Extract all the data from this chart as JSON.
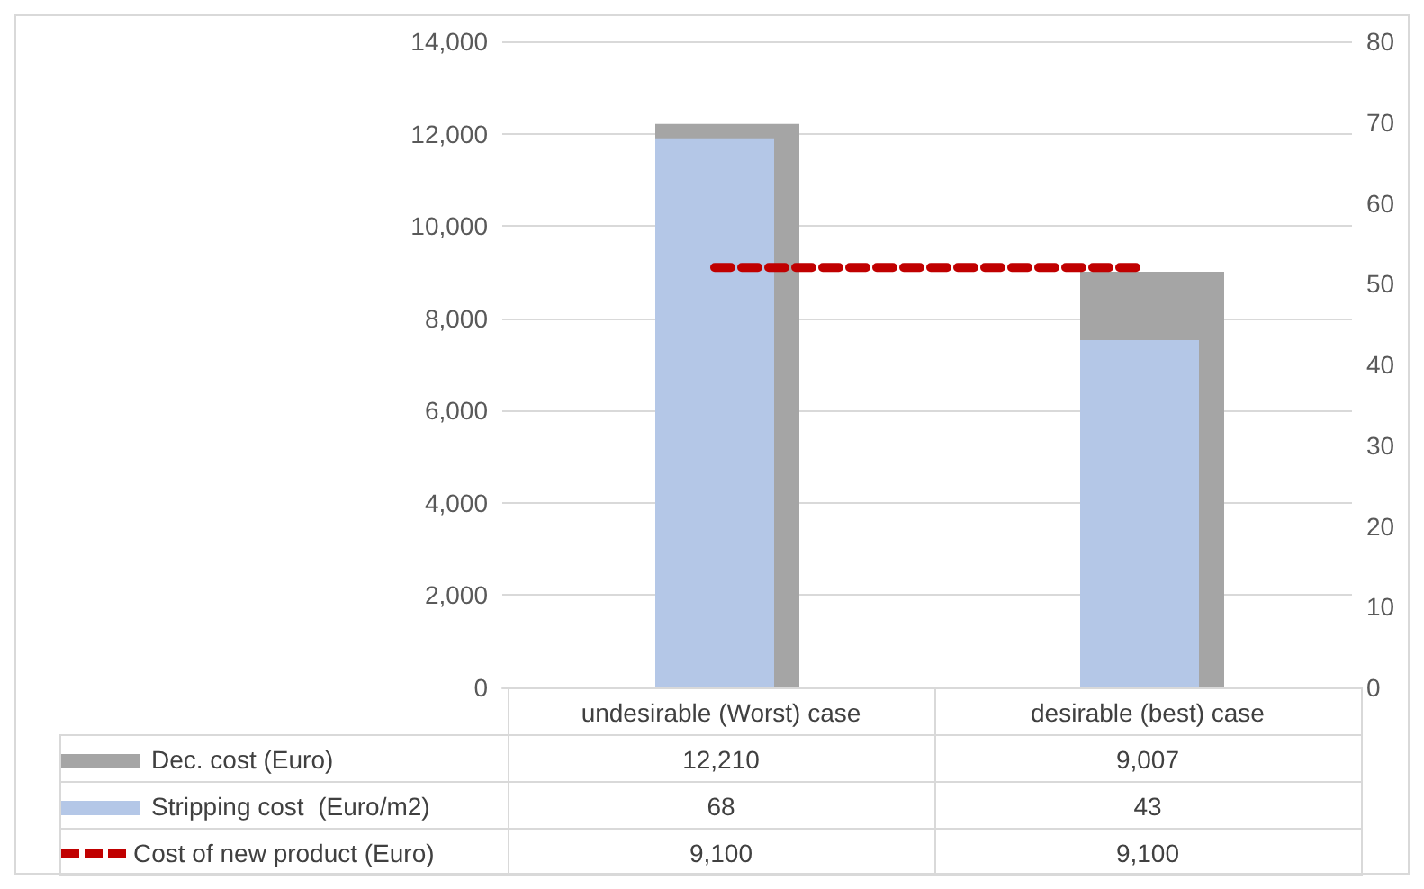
{
  "chart_data": {
    "type": "bar",
    "categories": [
      "undesirable (Worst) case",
      "desirable (best) case"
    ],
    "series": [
      {
        "name": "Dec. cost (Euro)",
        "color": "#a5a5a5",
        "values": [
          12210,
          9007
        ],
        "value_labels": [
          "12,210",
          "9,007"
        ]
      },
      {
        "name": "Stripping cost  (Euro/m2)",
        "color": "#b4c7e7",
        "values": [
          68,
          43
        ],
        "value_labels": [
          "68",
          "43"
        ],
        "axis": "y2"
      },
      {
        "name": "Cost of new product (Euro)",
        "type": "line",
        "color": "#c00000",
        "values": [
          9100,
          9100
        ],
        "value_labels": [
          "9,100",
          "9,100"
        ]
      }
    ],
    "ylim": [
      0,
      14000
    ],
    "yticks": [
      0,
      {
        "value": 2000,
        "label": "2,000"
      },
      {
        "value": 4000,
        "label": "4,000"
      },
      {
        "value": 6000,
        "label": "6,000"
      },
      {
        "value": 8000,
        "label": "8,000"
      },
      {
        "value": 10000,
        "label": "10,000"
      },
      {
        "value": 12000,
        "label": "12,000"
      },
      {
        "value": 14000,
        "label": "14,000"
      }
    ],
    "y2lim": [
      0,
      80
    ],
    "y2ticks": [
      0,
      10,
      20,
      30,
      40,
      50,
      60,
      70,
      80
    ],
    "grid": "y",
    "line_style": "dashed",
    "legend": "bottom"
  }
}
